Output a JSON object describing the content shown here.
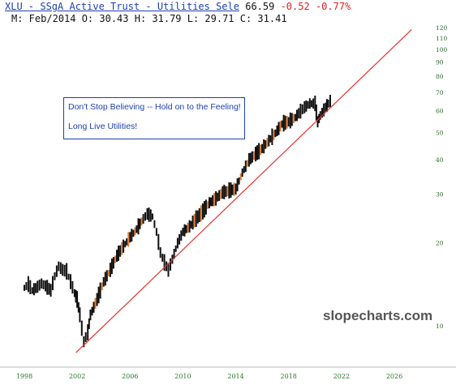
{
  "header": {
    "symbol_title": "XLU - SSgA Active Trust - Utilities Sele",
    "last_price": "66.59",
    "change": "-0.52",
    "change_pct": "-0.77%",
    "ohlc_line": "M: Feb/2014 O: 30.43 H: 31.79 L: 29.71 C: 31.41"
  },
  "annotation": {
    "line1": "Don't Stop Believing -- Hold on to the Feeling!",
    "line2": "Long Live Utilities!"
  },
  "watermark": "slopecharts.com",
  "colors": {
    "price_bars": "#111111",
    "trendline": "#e8302a",
    "axis_labels": "#2a7a2a",
    "link": "#1f3fb0",
    "negative": "#dd2222"
  },
  "chart_data": {
    "type": "candlestick",
    "title": "",
    "xlabel": "",
    "ylabel": "",
    "scale": "log",
    "xlim": [
      1997.5,
      2028
    ],
    "ylim": [
      7,
      125
    ],
    "x_ticks": [
      "1998",
      "2002",
      "2006",
      "2010",
      "2014",
      "2018",
      "2022",
      "2026"
    ],
    "y_ticks": [
      "120",
      "110",
      "100",
      "90",
      "80",
      "70",
      "60",
      "50",
      "40",
      "30",
      "20",
      "10"
    ],
    "series": [
      {
        "name": "",
        "x": [
          1998.0,
          1998.3,
          1998.6,
          1999.0,
          1999.3,
          1999.6,
          2000.0,
          2000.3,
          2000.6,
          2000.9,
          2001.2,
          2001.5,
          2001.8,
          2002.0,
          2002.2,
          2002.5,
          2002.8,
          2003.0,
          2003.5,
          2004.0,
          2004.5,
          2005.0,
          2005.5,
          2006.0,
          2006.5,
          2007.0,
          2007.3,
          2007.7,
          2008.0,
          2008.3,
          2008.6,
          2008.9,
          2009.2,
          2009.6,
          2010.0,
          2010.5,
          2011.0,
          2011.5,
          2012.0,
          2012.5,
          2013.0,
          2013.5,
          2014.0,
          2014.5,
          2015.0,
          2015.5,
          2016.0,
          2016.5,
          2017.0,
          2017.5,
          2018.0,
          2018.5,
          2018.9,
          2019.2,
          2019.6,
          2020.0,
          2020.2,
          2020.4,
          2020.8,
          2021.0,
          2021.3
        ],
        "close": [
          13.8,
          14.2,
          13.5,
          13.9,
          14.3,
          14.0,
          13.5,
          15.2,
          16.5,
          16.0,
          15.8,
          14.5,
          13.2,
          12.5,
          11.0,
          8.8,
          9.5,
          11.0,
          12.5,
          14.5,
          16.0,
          18.0,
          19.5,
          21.0,
          22.5,
          24.5,
          25.5,
          25.0,
          22.0,
          18.5,
          17.0,
          16.0,
          17.5,
          20.0,
          22.0,
          23.0,
          24.5,
          26.0,
          28.0,
          29.0,
          30.5,
          31.0,
          31.4,
          36.0,
          40.0,
          42.0,
          44.0,
          47.0,
          50.0,
          54.0,
          55.0,
          57.0,
          60.0,
          62.0,
          64.0,
          64.0,
          55.0,
          58.0,
          62.0,
          64.0,
          66.6
        ]
      }
    ],
    "trendline": {
      "x": [
        2001.9,
        2027.3
      ],
      "y": [
        8.0,
        118.0
      ]
    }
  }
}
